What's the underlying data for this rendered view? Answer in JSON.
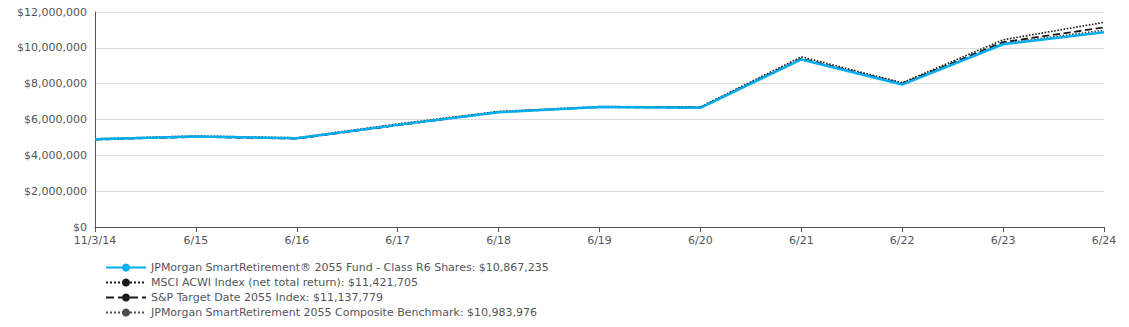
{
  "chart_data": {
    "type": "line",
    "categories": [
      "11/3/14",
      "6/15",
      "6/16",
      "6/17",
      "6/18",
      "6/19",
      "6/20",
      "6/21",
      "6/22",
      "6/23",
      "6/24"
    ],
    "series": [
      {
        "name": "JPMorgan SmartRetirement® 2055 Fund - Class R6 Shares: $10,867,235",
        "color": "#00aeef",
        "line_style": "solid",
        "values": [
          4900000,
          5050000,
          4950000,
          5700000,
          6400000,
          6700000,
          6650000,
          9350000,
          7950000,
          10200000,
          10867235
        ]
      },
      {
        "name": "MSCI ACWI Index (net total return): $11,421,705",
        "color": "#1a1a1a",
        "line_style": "dotted",
        "values": [
          4920000,
          5080000,
          4980000,
          5750000,
          6450000,
          6720000,
          6700000,
          9500000,
          8050000,
          10450000,
          11421705
        ]
      },
      {
        "name": "S&P Target Date 2055 Index: $11,137,779",
        "color": "#1a1a1a",
        "line_style": "dashed",
        "values": [
          4880000,
          5030000,
          4930000,
          5680000,
          6410000,
          6690000,
          6670000,
          9400000,
          8000000,
          10320000,
          11137779
        ]
      },
      {
        "name": "JPMorgan SmartRetirement 2055 Composite Benchmark: $10,983,976",
        "color": "#4d4d4d",
        "line_style": "dotted",
        "values": [
          4900000,
          5045000,
          4945000,
          5710000,
          6420000,
          6705000,
          6665000,
          9360000,
          7960000,
          10250000,
          10983976
        ]
      }
    ],
    "ylim": [
      0,
      12000000
    ],
    "yticks": [
      {
        "value": 0,
        "label": "$0"
      },
      {
        "value": 2000000,
        "label": "$2,000,000"
      },
      {
        "value": 4000000,
        "label": "$4,000,000"
      },
      {
        "value": 6000000,
        "label": "$6,000,000"
      },
      {
        "value": 8000000,
        "label": "$8,000,000"
      },
      {
        "value": 10000000,
        "label": "$10,000,000"
      },
      {
        "value": 12000000,
        "label": "$12,000,000"
      }
    ],
    "grid": true,
    "legend": "lower left"
  }
}
